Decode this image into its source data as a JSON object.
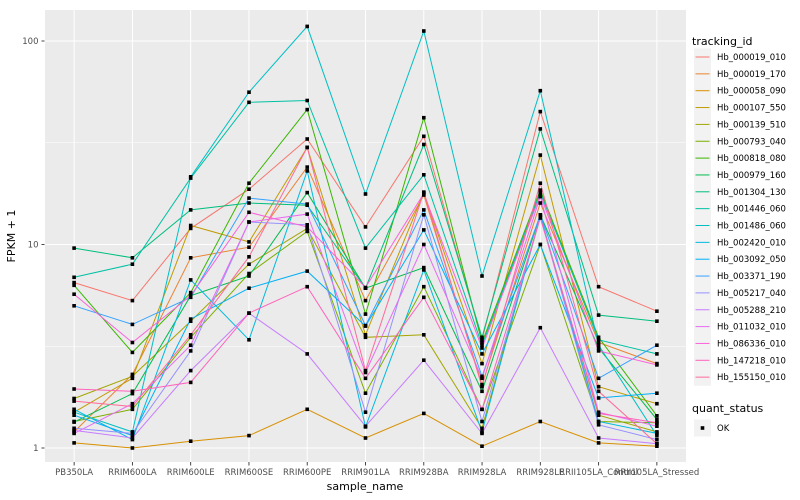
{
  "figure": {
    "background": "#FFFFFF",
    "panel_bg": "#EBEBEB",
    "grid_color": "#FFFFFF",
    "tick_color": "#333333",
    "tick_label_color": "#4D4D4D",
    "point_color": "#000000"
  },
  "chart_data": {
    "type": "line",
    "title": "",
    "xlabel": "sample_name",
    "ylabel": "FPKM + 1",
    "y_scale": "log10",
    "y_ticks": [
      1,
      10,
      100
    ],
    "ylim": [
      0.85,
      142
    ],
    "grid": true,
    "marker": "filled-square",
    "legend_position": "right",
    "categories": [
      "PB350LA",
      "RRIM600LA",
      "RRIM600LE",
      "RRIM600SE",
      "RRIM600PE",
      "RRIM901LA",
      "RRIM928BA",
      "RRIM928LA",
      "RRIM928LE",
      "RRII105LA_Control",
      "RRII105LA_Stressed"
    ],
    "series": [
      {
        "name": "Hb_000019_010",
        "color": "#F8766D",
        "values": [
          6.5,
          5.3,
          12.0,
          18.7,
          33,
          12.2,
          34,
          3.4,
          45,
          6.2,
          4.7
        ]
      },
      {
        "name": "Hb_000019_170",
        "color": "#EA8331",
        "values": [
          1.2,
          2.3,
          8.6,
          9.7,
          24,
          5.3,
          17.5,
          2.05,
          16,
          3.3,
          2.6
        ]
      },
      {
        "name": "Hb_000058_090",
        "color": "#D89000",
        "values": [
          1.06,
          1.0,
          1.08,
          1.15,
          1.55,
          1.12,
          1.48,
          1.02,
          1.35,
          1.06,
          1.02
        ]
      },
      {
        "name": "Hb_000107_550",
        "color": "#C09B00",
        "values": [
          1.5,
          2.2,
          12.4,
          10.3,
          30,
          3.6,
          18,
          2.6,
          27.5,
          2.0,
          1.65
        ]
      },
      {
        "name": "Hb_000139_510",
        "color": "#A3A500",
        "values": [
          1.75,
          2.25,
          4.2,
          8.0,
          12.0,
          3.5,
          3.6,
          1.25,
          13.7,
          1.45,
          1.2
        ]
      },
      {
        "name": "Hb_000793_040",
        "color": "#7CAE00",
        "values": [
          1.35,
          1.55,
          3.5,
          7.2,
          11.6,
          1.86,
          6.2,
          1.55,
          10.0,
          1.35,
          1.33
        ]
      },
      {
        "name": "Hb_000818_080",
        "color": "#39B600",
        "values": [
          6.3,
          2.95,
          5.8,
          20,
          46,
          4.55,
          42,
          3.3,
          18.5,
          3.5,
          1.44
        ]
      },
      {
        "name": "Hb_000979_160",
        "color": "#00BB4E",
        "values": [
          1.34,
          1.85,
          5.6,
          7.0,
          18,
          6.1,
          7.7,
          1.9,
          14.0,
          3.1,
          1.38
        ]
      },
      {
        "name": "Hb_001304_130",
        "color": "#00BF7D",
        "values": [
          9.6,
          8.6,
          14.8,
          16,
          15.6,
          6.1,
          31,
          3.5,
          37,
          4.5,
          4.2
        ]
      },
      {
        "name": "Hb_001446_060",
        "color": "#00C1A3",
        "values": [
          6.9,
          8.0,
          21.2,
          50,
          51,
          9.6,
          22,
          3.2,
          18,
          3.4,
          2.9
        ]
      },
      {
        "name": "Hb_001486_060",
        "color": "#00BFC4",
        "values": [
          1.5,
          1.2,
          21.5,
          56,
          118,
          17.7,
          112,
          7.0,
          57,
          3.2,
          1.15
        ]
      },
      {
        "name": "Hb_002420_010",
        "color": "#00BAE0",
        "values": [
          1.55,
          1.1,
          6.7,
          3.4,
          23,
          1.27,
          7.5,
          1.2,
          13.9,
          1.35,
          1.18
        ]
      },
      {
        "name": "Hb_003092_050",
        "color": "#00B0F6",
        "values": [
          1.45,
          1.15,
          4.3,
          6.1,
          7.4,
          3.97,
          11.8,
          2.9,
          10.0,
          1.76,
          1.86
        ]
      },
      {
        "name": "Hb_003371_190",
        "color": "#35A2FF",
        "values": [
          5.0,
          4.05,
          5.5,
          16.9,
          15.8,
          4.0,
          14.8,
          2.25,
          14.0,
          2.2,
          3.2
        ]
      },
      {
        "name": "Hb_005217_040",
        "color": "#9590FF",
        "values": [
          1.25,
          1.18,
          3.0,
          12.9,
          12.5,
          1.5,
          14.0,
          1.35,
          13.7,
          1.3,
          1.1
        ]
      },
      {
        "name": "Hb_005288_210",
        "color": "#C77CFF",
        "values": [
          1.22,
          1.12,
          2.4,
          4.6,
          2.9,
          1.28,
          2.7,
          1.18,
          3.9,
          1.12,
          1.05
        ]
      },
      {
        "name": "Hb_011032_010",
        "color": "#E76BF3",
        "values": [
          1.18,
          1.65,
          3.2,
          12.9,
          14.1,
          2.35,
          10.0,
          2.2,
          17.2,
          1.5,
          1.28
        ]
      },
      {
        "name": "Hb_086336_010",
        "color": "#FA62DB",
        "values": [
          5.7,
          3.3,
          5.6,
          14.4,
          12.2,
          6.15,
          17.8,
          3.1,
          17.5,
          3.0,
          2.56
        ]
      },
      {
        "name": "Hb_147218_010",
        "color": "#FF62BC",
        "values": [
          1.95,
          1.9,
          2.1,
          4.6,
          6.2,
          2.2,
          5.5,
          1.55,
          13.5,
          1.48,
          1.33
        ]
      },
      {
        "name": "Hb_155150_010",
        "color": "#FF6A98",
        "values": [
          1.7,
          1.6,
          3.6,
          8.7,
          30,
          2.4,
          18.1,
          2.0,
          20,
          1.9,
          1.05
        ]
      }
    ],
    "legend": {
      "series_title": "tracking_id",
      "status_title": "quant_status",
      "status_label": "OK"
    }
  }
}
